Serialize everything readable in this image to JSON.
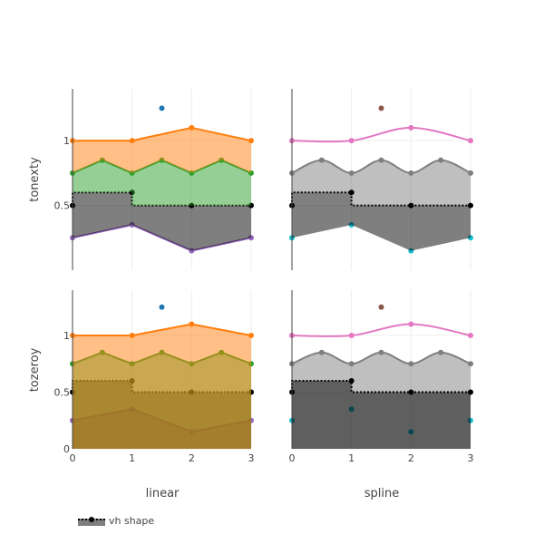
{
  "figure": {
    "row_labels": [
      "tonexty",
      "tozeroy"
    ],
    "column_labels": [
      "linear",
      "spline"
    ],
    "legend_label": "vh shape"
  },
  "chart_data": {
    "type": "area",
    "grid": true,
    "x_ticks": [
      "0",
      "1",
      "2",
      "3"
    ],
    "y_ticks_top": [
      "0.5",
      "1"
    ],
    "y_ticks_bottom": [
      "0",
      "0.5",
      "1"
    ],
    "xlim": [
      0,
      3
    ],
    "ylim_top": [
      0,
      1.4
    ],
    "ylim_bottom": [
      0,
      1.4
    ],
    "legend": {
      "position": "bottom-left",
      "entries": [
        "vh shape"
      ]
    },
    "series": [
      {
        "key": "purple",
        "x": [
          0,
          1,
          2,
          3
        ],
        "y": [
          0.25,
          0.35,
          0.15,
          0.25
        ],
        "color": "#9467bd",
        "line_shape": "linear"
      },
      {
        "key": "black_vh",
        "x": [
          0,
          1,
          2,
          3
        ],
        "y": [
          0.5,
          0.6,
          0.5,
          0.5
        ],
        "color": "#000000",
        "line_shape": "vh",
        "dash": "dot"
      },
      {
        "key": "gray",
        "x": [
          0,
          0.5,
          1,
          1.5,
          2,
          2.5,
          3
        ],
        "y": [
          0.75,
          0.85,
          0.75,
          0.85,
          0.75,
          0.85,
          0.75
        ],
        "color": "#7f7f7f",
        "line_shape": "linear"
      },
      {
        "key": "pink",
        "x": [
          0,
          1,
          2,
          3
        ],
        "y": [
          1.0,
          1.0,
          1.1,
          1.0
        ],
        "color": "#e377c2",
        "line_shape": "linear"
      },
      {
        "key": "brown",
        "x": [
          1.5
        ],
        "y": [
          1.25
        ],
        "color": "#8c564b",
        "markers_only": true
      }
    ],
    "panels": [
      {
        "row": 0,
        "col": 0,
        "row_label": "tonexty",
        "col_label": "linear",
        "fill": "tonexty",
        "colors": {
          "purple": "#9467bd",
          "black_vh": "#000000",
          "gray": "#2ca02c",
          "pink": "#ff7f0e",
          "brown": "#1f77b4"
        },
        "fill_colors": {
          "purple": "rgba(148,103,189,0.5)",
          "black_vh": "rgba(0,0,0,0.5)",
          "gray": "rgba(44,160,44,0.5)",
          "pink": "rgba(255,127,14,0.5)"
        }
      },
      {
        "row": 0,
        "col": 1,
        "row_label": "tonexty",
        "col_label": "spline",
        "fill": "tonexty",
        "spline": true,
        "colors": {
          "purple": "#17becf",
          "black_vh": "#000000",
          "gray": "#7f7f7f",
          "pink": "#e377c2",
          "brown": "#8c564b"
        },
        "fill_colors": {
          "purple": "none",
          "black_vh": "rgba(0,0,0,0.5)",
          "gray": "rgba(0,0,0,0.25)",
          "pink": "none"
        }
      },
      {
        "row": 1,
        "col": 0,
        "row_label": "tozeroy",
        "col_label": "linear",
        "fill": "tozeroy",
        "colors": {
          "purple": "#9467bd",
          "black_vh": "#000000",
          "gray": "#2ca02c",
          "pink": "#ff7f0e",
          "brown": "#1f77b4"
        },
        "fill_colors": {
          "purple": "rgba(148,103,189,0.5)",
          "black_vh": "rgba(0,0,0,0.5)",
          "gray": "rgba(44,160,44,0.5)",
          "pink": "rgba(255,127,14,0.5)"
        }
      },
      {
        "row": 1,
        "col": 1,
        "row_label": "tozeroy",
        "col_label": "spline",
        "fill": "tozeroy",
        "spline": true,
        "colors": {
          "purple": "#17becf",
          "black_vh": "#000000",
          "gray": "#7f7f7f",
          "pink": "#e377c2",
          "brown": "#8c564b"
        },
        "fill_colors": {
          "purple": "none",
          "black_vh": "rgba(0,0,0,0.5)",
          "gray": "rgba(0,0,0,0.25)",
          "pink": "none"
        }
      }
    ]
  }
}
